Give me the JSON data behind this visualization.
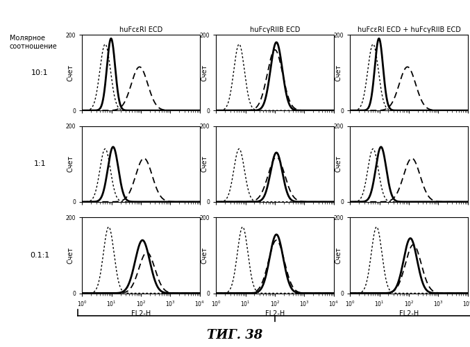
{
  "title": "ΤИГ. 38",
  "col_titles": [
    "huFcεRI ECD",
    "huFcγRIIB ECD",
    "huFcεRI ECD + huFcγRIIB ECD"
  ],
  "row_labels": [
    "10:1",
    "1:1",
    "0.1:1"
  ],
  "left_label_line1": "Молярное",
  "left_label_line2": "соотношение",
  "ylabel": "Счет",
  "xlabel": "FL2-H",
  "ylim": [
    0,
    200
  ],
  "background_color": "#ffffff",
  "panels": {
    "r0c0": {
      "dotted_mu": 0.78,
      "dotted_sigma": 0.18,
      "dotted_amp": 175,
      "solid_mu": 0.98,
      "solid_sigma": 0.14,
      "solid_amp": 190,
      "dashed_mu": 1.95,
      "dashed_sigma": 0.28,
      "dashed_amp": 115
    },
    "r0c1": {
      "dotted_mu": 0.78,
      "dotted_sigma": 0.18,
      "dotted_amp": 175,
      "solid_mu": 2.05,
      "solid_sigma": 0.2,
      "solid_amp": 180,
      "dashed_mu": 2.0,
      "dashed_sigma": 0.26,
      "dashed_amp": 160
    },
    "r0c2": {
      "dotted_mu": 0.78,
      "dotted_sigma": 0.18,
      "dotted_amp": 175,
      "solid_mu": 0.98,
      "solid_sigma": 0.14,
      "solid_amp": 190,
      "dashed_mu": 1.95,
      "dashed_sigma": 0.28,
      "dashed_amp": 115
    },
    "r1c0": {
      "dotted_mu": 0.78,
      "dotted_sigma": 0.18,
      "dotted_amp": 140,
      "solid_mu": 1.05,
      "solid_sigma": 0.18,
      "solid_amp": 145,
      "dashed_mu": 2.1,
      "dashed_sigma": 0.28,
      "dashed_amp": 115
    },
    "r1c1": {
      "dotted_mu": 0.78,
      "dotted_sigma": 0.18,
      "dotted_amp": 140,
      "solid_mu": 2.05,
      "solid_sigma": 0.2,
      "solid_amp": 130,
      "dashed_mu": 2.05,
      "dashed_sigma": 0.28,
      "dashed_amp": 118
    },
    "r1c2": {
      "dotted_mu": 0.78,
      "dotted_sigma": 0.18,
      "dotted_amp": 140,
      "solid_mu": 1.05,
      "solid_sigma": 0.18,
      "solid_amp": 145,
      "dashed_mu": 2.1,
      "dashed_sigma": 0.28,
      "dashed_amp": 115
    },
    "r2c0": {
      "dotted_mu": 0.9,
      "dotted_sigma": 0.18,
      "dotted_amp": 175,
      "solid_mu": 2.05,
      "solid_sigma": 0.25,
      "solid_amp": 140,
      "dashed_mu": 2.2,
      "dashed_sigma": 0.27,
      "dashed_amp": 108
    },
    "r2c1": {
      "dotted_mu": 0.9,
      "dotted_sigma": 0.18,
      "dotted_amp": 175,
      "solid_mu": 2.05,
      "solid_sigma": 0.23,
      "solid_amp": 155,
      "dashed_mu": 2.05,
      "dashed_sigma": 0.27,
      "dashed_amp": 140
    },
    "r2c2": {
      "dotted_mu": 0.9,
      "dotted_sigma": 0.18,
      "dotted_amp": 175,
      "solid_mu": 2.05,
      "solid_sigma": 0.23,
      "solid_amp": 145,
      "dashed_mu": 2.15,
      "dashed_sigma": 0.27,
      "dashed_amp": 128
    }
  }
}
